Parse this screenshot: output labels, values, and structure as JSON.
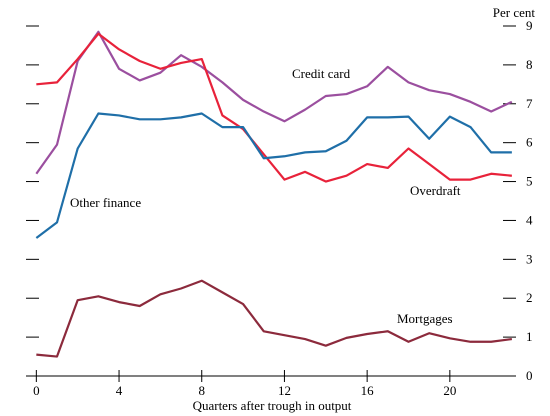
{
  "chart_data": {
    "type": "line",
    "x": [
      0,
      1,
      2,
      3,
      4,
      5,
      6,
      7,
      8,
      9,
      10,
      11,
      12,
      13,
      14,
      15,
      16,
      17,
      18,
      19,
      20,
      21,
      22,
      23
    ],
    "xlabel": "Quarters after trough in output",
    "ylabel": "Per cent",
    "xlim": [
      -0.5,
      23.2
    ],
    "xticks": [
      0,
      4,
      8,
      12,
      16,
      20
    ],
    "ylim": [
      0,
      9
    ],
    "yticks": [
      0,
      1,
      2,
      3,
      4,
      5,
      6,
      7,
      8,
      9
    ],
    "series": [
      {
        "name": "Credit card",
        "color": "#9b4f9f",
        "values": [
          5.2,
          5.95,
          8.1,
          8.85,
          7.9,
          7.6,
          7.8,
          8.25,
          7.95,
          7.55,
          7.1,
          6.8,
          6.55,
          6.85,
          7.2,
          7.25,
          7.45,
          7.95,
          7.55,
          7.35,
          7.25,
          7.05,
          6.8,
          7.05
        ]
      },
      {
        "name": "Overdraft",
        "color": "#e8223a",
        "values": [
          7.5,
          7.55,
          8.15,
          8.8,
          8.4,
          8.1,
          7.9,
          8.05,
          8.15,
          6.7,
          6.35,
          5.7,
          5.05,
          5.25,
          5.0,
          5.15,
          5.45,
          5.35,
          5.85,
          5.45,
          5.05,
          5.05,
          5.2,
          5.15
        ]
      },
      {
        "name": "Other finance",
        "color": "#1f6fa8",
        "values": [
          3.55,
          3.95,
          5.85,
          6.75,
          6.7,
          6.6,
          6.6,
          6.65,
          6.75,
          6.4,
          6.4,
          5.6,
          5.65,
          5.75,
          5.78,
          6.05,
          6.65,
          6.65,
          6.67,
          6.1,
          6.67,
          6.4,
          5.75,
          5.75
        ]
      },
      {
        "name": "Mortgages",
        "color": "#8c2a3c",
        "values": [
          0.55,
          0.5,
          1.95,
          2.05,
          1.9,
          1.8,
          2.1,
          2.25,
          2.45,
          2.15,
          1.85,
          1.15,
          1.05,
          0.95,
          0.78,
          0.98,
          1.08,
          1.15,
          0.88,
          1.1,
          0.97,
          0.88,
          0.88,
          0.95
        ]
      }
    ]
  }
}
